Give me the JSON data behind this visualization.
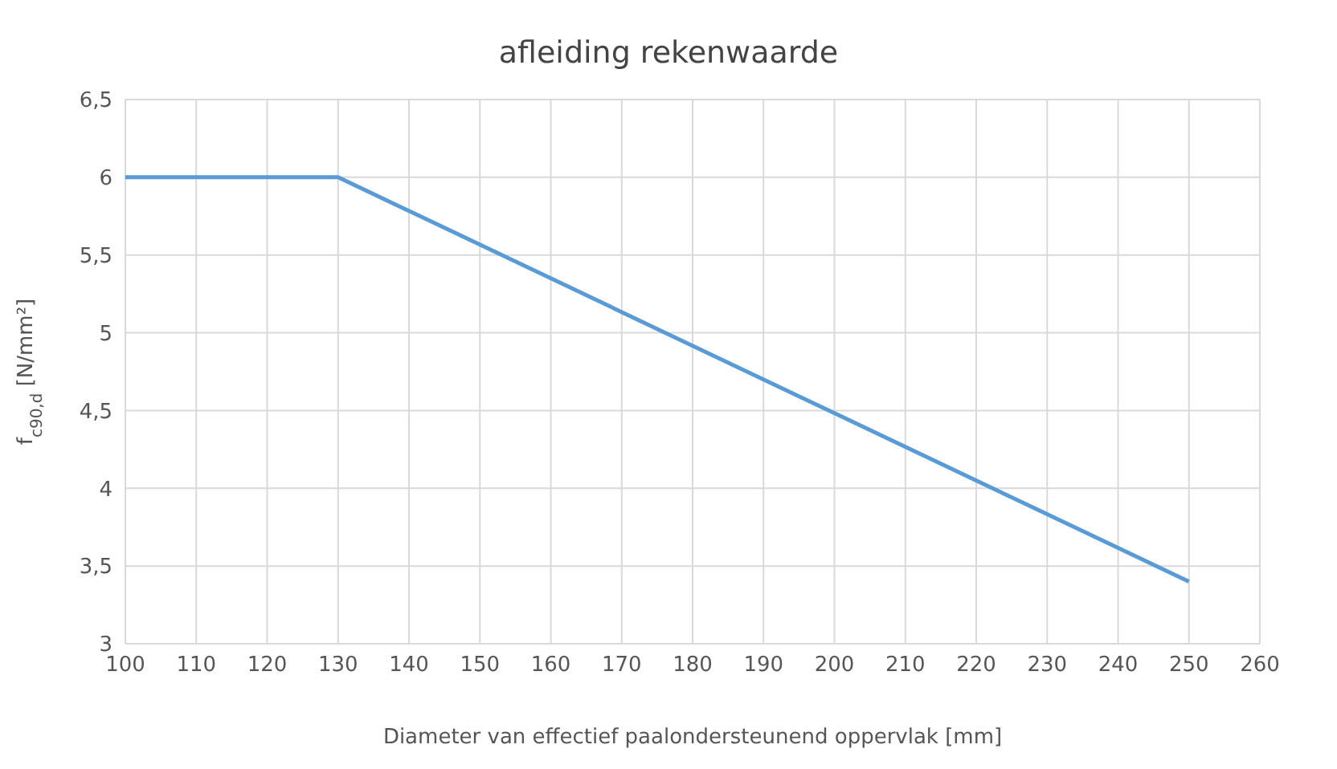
{
  "chart_data": {
    "type": "line",
    "title": "afleiding rekenwaarde",
    "xlabel": "Diameter van effectief paalondersteunend oppervlak [mm]",
    "ylabel": "f$_{c90,d}$ [N/mm²]",
    "x": [
      100,
      130,
      250
    ],
    "series": [
      {
        "color": "#5b9bd5",
        "values": [
          6,
          6,
          3.4
        ]
      }
    ],
    "xlim": [
      100,
      260
    ],
    "xticks": [
      100,
      110,
      120,
      130,
      140,
      150,
      160,
      170,
      180,
      190,
      200,
      210,
      220,
      230,
      240,
      250,
      260
    ],
    "ylim": [
      3,
      6.5
    ],
    "yticks": [
      3,
      {
        "value": 3.5,
        "label": "3,5"
      },
      4,
      {
        "value": 4.5,
        "label": "4,5"
      },
      5,
      {
        "value": 5.5,
        "label": "5,5"
      },
      6,
      {
        "value": 6.5,
        "label": "6,5"
      }
    ],
    "grid": true,
    "marker": "none",
    "line_style": "solid",
    "legend": false
  }
}
